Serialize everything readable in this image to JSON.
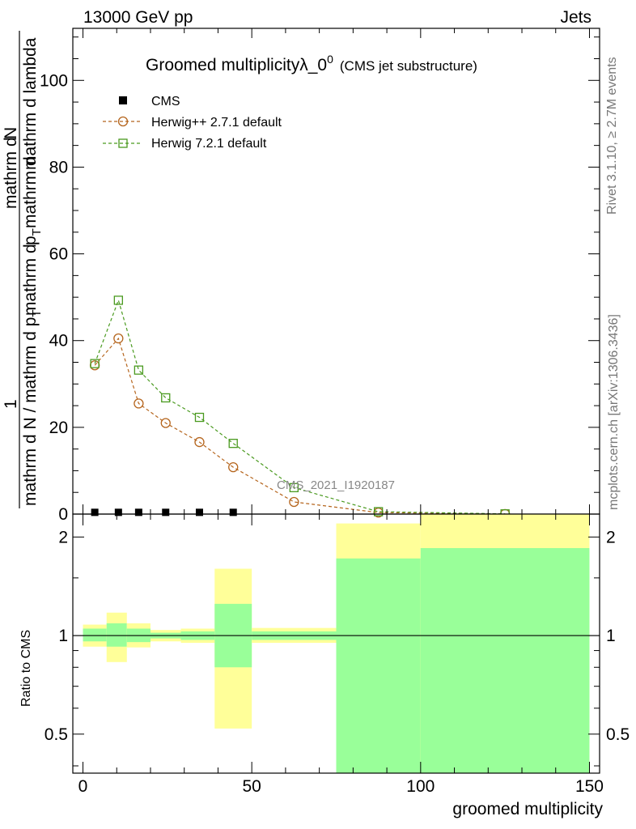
{
  "header": {
    "left": "13000 GeV pp",
    "right": "Jets"
  },
  "side_labels": {
    "rivet": "Rivet 3.1.10, ≥ 2.7M events",
    "mcplots": "mcplots.cern.ch [arXiv:1306.3436]"
  },
  "colors": {
    "herwigpp": "#b5651d",
    "herwig7": "#4a9a1f",
    "band_inner": "#99ff99",
    "band_outer": "#ffff99"
  },
  "chart_data": [
    {
      "type": "line",
      "title": "Groomed multiplicity",
      "title_symbol": "λ_0",
      "title_sup": "0",
      "title_sub": "(CMS jet substructure)",
      "watermark": "CMS_2021_I1920187",
      "ylabel_top": "1",
      "ylabel_den": "mathrm d N / mathrm d p",
      "ylabel_den_sub": "T",
      "ylabel_num_a": "mathrm d",
      "ylabel_num_b": "p",
      "ylabel_num_b_sub": "T",
      "ylabel_num_c": "mathrm d",
      "ylabel_num_d": "mathrm d",
      "ylabel_num_e": "N",
      "ylabel_num_f": "mathrm d lambda",
      "xlim": [
        -3,
        153
      ],
      "ylim": [
        0,
        112
      ],
      "yticks": [
        0,
        20,
        40,
        60,
        80,
        100
      ],
      "tick_labels": [
        "0",
        "20",
        "40",
        "60",
        "80",
        "100"
      ],
      "legend_position": "top-left",
      "series": [
        {
          "name": "CMS",
          "marker": "filled-square",
          "x": [
            3.5,
            10.5,
            16.5,
            24.5,
            34.5,
            44.5
          ],
          "y": [
            0.4,
            0.4,
            0.4,
            0.4,
            0.4,
            0.4
          ]
        },
        {
          "name": "Herwig++ 2.7.1 default",
          "marker": "open-circle",
          "x": [
            3.5,
            10.5,
            16.5,
            24.5,
            34.5,
            44.5,
            62.5,
            87.5,
            125
          ],
          "y": [
            34.3,
            40.5,
            25.5,
            21.0,
            16.6,
            10.8,
            2.8,
            0.35,
            0.03
          ]
        },
        {
          "name": "Herwig 7.2.1 default",
          "marker": "open-square",
          "x": [
            3.5,
            10.5,
            16.5,
            24.5,
            34.5,
            44.5,
            62.5,
            87.5,
            125
          ],
          "y": [
            34.7,
            49.3,
            33.2,
            26.8,
            22.3,
            16.3,
            6.1,
            0.55,
            0.05
          ]
        }
      ]
    },
    {
      "type": "area",
      "ylabel": "Ratio to CMS",
      "xlabel": "groomed multiplicity",
      "xlim": [
        -3,
        153
      ],
      "ylim": [
        0.38,
        2.35
      ],
      "log_scale_y": true,
      "xticks": [
        0,
        50,
        100,
        150
      ],
      "xtick_labels": [
        "0",
        "50",
        "100",
        "150"
      ],
      "yticks": [
        0.5,
        1,
        2
      ],
      "ytick_labels": [
        "0.5",
        "1",
        "2"
      ],
      "reference_line": 1,
      "bins": [
        {
          "lo": 0,
          "hi": 7,
          "inner": [
            0.96,
            1.05
          ],
          "outer": [
            0.925,
            1.08
          ]
        },
        {
          "lo": 7,
          "hi": 13,
          "inner": [
            0.925,
            1.09
          ],
          "outer": [
            0.83,
            1.175
          ]
        },
        {
          "lo": 13,
          "hi": 20,
          "inner": [
            0.955,
            1.05
          ],
          "outer": [
            0.92,
            1.09
          ]
        },
        {
          "lo": 20,
          "hi": 29,
          "inner": [
            0.98,
            1.02
          ],
          "outer": [
            0.96,
            1.04
          ]
        },
        {
          "lo": 29,
          "hi": 39,
          "inner": [
            0.97,
            1.03
          ],
          "outer": [
            0.95,
            1.05
          ]
        },
        {
          "lo": 39,
          "hi": 50,
          "inner": [
            0.8,
            1.25
          ],
          "outer": [
            0.52,
            1.6
          ]
        },
        {
          "lo": 50,
          "hi": 75,
          "inner": [
            0.97,
            1.03
          ],
          "outer": [
            0.95,
            1.055
          ]
        },
        {
          "lo": 75,
          "hi": 100,
          "inner": [
            0.38,
            1.72
          ],
          "outer": [
            0.38,
            2.2
          ]
        },
        {
          "lo": 100,
          "hi": 150,
          "inner": [
            0.38,
            1.85
          ],
          "outer": [
            0.38,
            2.35
          ]
        }
      ]
    }
  ]
}
